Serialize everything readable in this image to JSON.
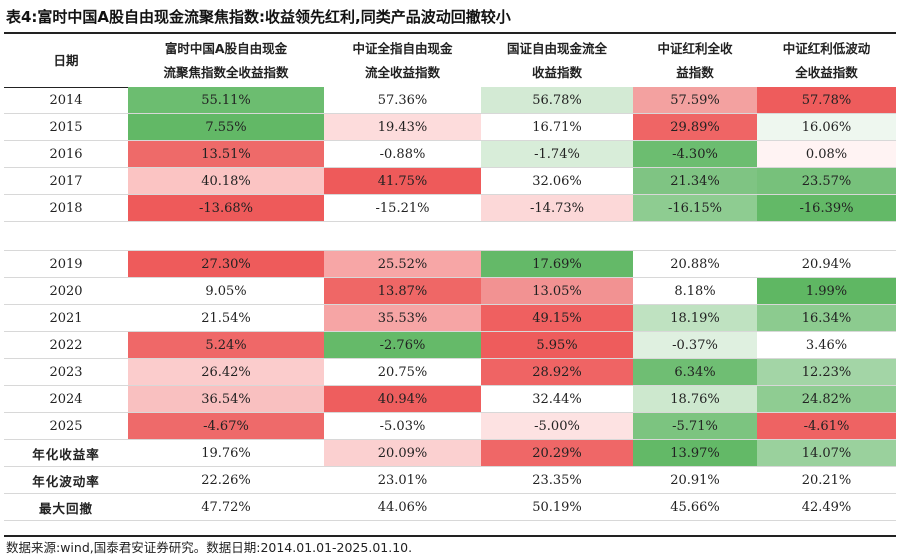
{
  "title": "表4:富时中国A股自由现金流聚焦指数:收益领先红利,同类产品波动回撤较小",
  "header": {
    "date": "日期",
    "cols": [
      [
        "富时中国A股自由现金",
        "流聚焦指数全收益指数"
      ],
      [
        "中证全指自由现金",
        "流全收益指数"
      ],
      [
        "国证自由现金流全",
        "收益指数"
      ],
      [
        "中证红利全收",
        "益指数"
      ],
      [
        "中证红利低波动",
        "全收益指数"
      ]
    ]
  },
  "group1": [
    {
      "label": "2014",
      "values": [
        "55.11%",
        "57.36%",
        "56.78%",
        "57.59%",
        "57.78%"
      ],
      "colors": [
        "#6cbd70",
        "#ffffff",
        "#d3ead4",
        "#f3a1a0",
        "#ee5c5c"
      ]
    },
    {
      "label": "2015",
      "values": [
        "7.55%",
        "19.43%",
        "16.71%",
        "29.89%",
        "16.06%"
      ],
      "colors": [
        "#62b866",
        "#fddcdc",
        "#ffffff",
        "#ef6565",
        "#eef7ef"
      ]
    },
    {
      "label": "2016",
      "values": [
        "13.51%",
        "-0.88%",
        "-1.74%",
        "-4.30%",
        "0.08%"
      ],
      "colors": [
        "#ee6a69",
        "#ffffff",
        "#d8edd9",
        "#6cbd70",
        "#fff3f3"
      ]
    },
    {
      "label": "2017",
      "values": [
        "40.18%",
        "41.75%",
        "32.06%",
        "21.34%",
        "23.57%"
      ],
      "colors": [
        "#fbc4c3",
        "#ee5a5a",
        "#ffffff",
        "#7fc483",
        "#77c17b"
      ]
    },
    {
      "label": "2018",
      "values": [
        "-13.68%",
        "-15.21%",
        "-14.73%",
        "-16.15%",
        "-16.39%"
      ],
      "colors": [
        "#ee5a5a",
        "#ffffff",
        "#fcd8d8",
        "#8ecc91",
        "#63b967"
      ]
    }
  ],
  "group2": [
    {
      "label": "2019",
      "values": [
        "27.30%",
        "25.52%",
        "17.69%",
        "20.88%",
        "20.94%"
      ],
      "colors": [
        "#ee5b5b",
        "#f7a6a6",
        "#64b968",
        "#ffffff",
        "#ffffff"
      ]
    },
    {
      "label": "2020",
      "values": [
        "9.05%",
        "13.87%",
        "13.05%",
        "8.18%",
        "1.99%"
      ],
      "colors": [
        "#ffffff",
        "#ef6766",
        "#f29292",
        "#ffffff",
        "#5fb763"
      ]
    },
    {
      "label": "2021",
      "values": [
        "21.54%",
        "35.53%",
        "49.15%",
        "18.19%",
        "16.34%"
      ],
      "colors": [
        "#ffffff",
        "#f6a5a5",
        "#ef6060",
        "#bfe2c1",
        "#8ccb8f"
      ]
    },
    {
      "label": "2022",
      "values": [
        "5.24%",
        "-2.76%",
        "5.95%",
        "-0.37%",
        "3.46%"
      ],
      "colors": [
        "#ef6868",
        "#65ba69",
        "#ee5c5c",
        "#dff0e0",
        "#ffffff"
      ]
    },
    {
      "label": "2023",
      "values": [
        "26.42%",
        "20.75%",
        "28.92%",
        "6.34%",
        "12.23%"
      ],
      "colors": [
        "#fbcccc",
        "#ffffff",
        "#ef6464",
        "#6fbe73",
        "#a3d5a6"
      ]
    },
    {
      "label": "2024",
      "values": [
        "36.54%",
        "40.94%",
        "32.44%",
        "18.76%",
        "24.82%"
      ],
      "colors": [
        "#f9c0c0",
        "#ee5e5e",
        "#ffffff",
        "#cde8ce",
        "#8fcc92"
      ]
    },
    {
      "label": "2025",
      "values": [
        "-4.67%",
        "-5.03%",
        "-5.00%",
        "-5.71%",
        "-4.61%"
      ],
      "colors": [
        "#ee6a6a",
        "#ffffff",
        "#fde2e2",
        "#7cc480",
        "#ee6363"
      ]
    }
  ],
  "summary": [
    {
      "label": "年化收益率",
      "values": [
        "19.76%",
        "20.09%",
        "20.29%",
        "13.97%",
        "14.07%"
      ],
      "colors": [
        "#ffffff",
        "#fbd0d0",
        "#ef6767",
        "#63b967",
        "#9ad19d"
      ]
    },
    {
      "label": "年化波动率",
      "values": [
        "22.26%",
        "23.01%",
        "23.35%",
        "20.91%",
        "20.21%"
      ],
      "colors": [
        "#ffffff",
        "#ffffff",
        "#ffffff",
        "#ffffff",
        "#ffffff"
      ]
    },
    {
      "label": "最大回撤",
      "values": [
        "47.72%",
        "44.06%",
        "50.19%",
        "45.66%",
        "42.49%"
      ],
      "colors": [
        "#ffffff",
        "#ffffff",
        "#ffffff",
        "#ffffff",
        "#ffffff"
      ]
    }
  ],
  "footer": "数据来源:wind,国泰君安证券研究。数据日期:2014.01.01-2025.01.10."
}
